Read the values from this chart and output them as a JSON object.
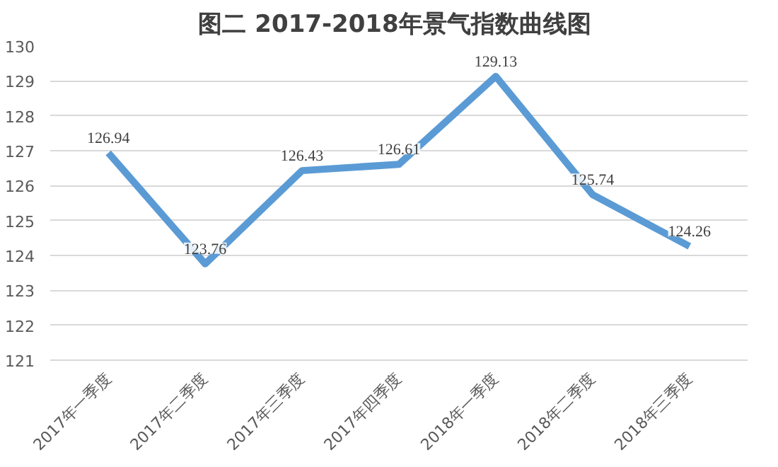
{
  "chart_data": {
    "type": "line",
    "title": "图二  2017-2018年景气指数曲线图",
    "categories": [
      "2017年一季度",
      "2017年二季度",
      "2017年三季度",
      "2017年四季度",
      "2018年一季度",
      "2018年二季度",
      "2018年三季度"
    ],
    "series": [
      {
        "color": "#5b9bd5",
        "values": [
          126.94,
          123.76,
          126.43,
          126.61,
          129.13,
          125.74,
          124.26
        ]
      }
    ],
    "ylim": [
      121,
      130
    ],
    "yticks": [
      121,
      122,
      123,
      124,
      125,
      126,
      127,
      128,
      129,
      130
    ],
    "grid": "y",
    "data_labels": true,
    "marker": "none",
    "line_style": "solid"
  }
}
